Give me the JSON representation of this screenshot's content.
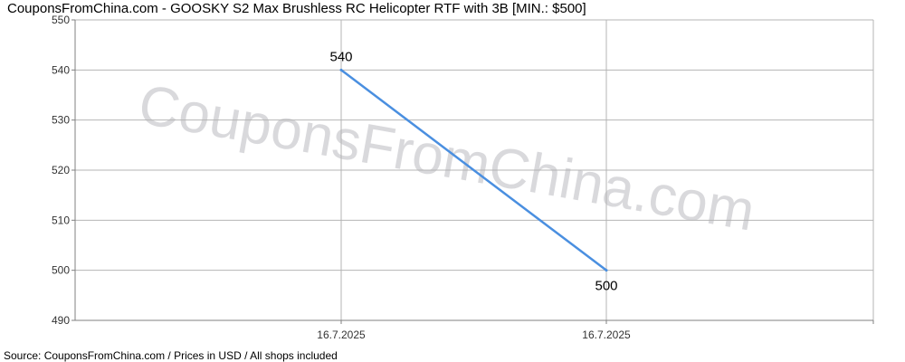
{
  "title": "CouponsFromChina.com - GOOSKY S2 Max Brushless RC Helicopter RTF with 3B [MIN.: $500]",
  "source": "Source:  CouponsFromChina.com / Prices in USD / All shops included",
  "watermark": "CouponsFromChina.com",
  "colors": {
    "line": "#4a8fe0",
    "grid": "#b4b4b4",
    "axis": "#808080",
    "watermark": "#d9d9dc"
  },
  "chart_data": {
    "type": "line",
    "title": "CouponsFromChina.com - GOOSKY S2 Max Brushless RC Helicopter RTF with 3B [MIN.: $500]",
    "xlabel": "",
    "ylabel": "",
    "categories": [
      "16.7.2025",
      "16.7.2025"
    ],
    "series": [
      {
        "values": [
          540,
          500
        ],
        "data_labels": [
          "540",
          "500"
        ]
      }
    ],
    "ylim": [
      490,
      550
    ],
    "yticks": [
      490,
      500,
      510,
      520,
      530,
      540,
      550
    ],
    "grid": true,
    "legend": "none"
  }
}
